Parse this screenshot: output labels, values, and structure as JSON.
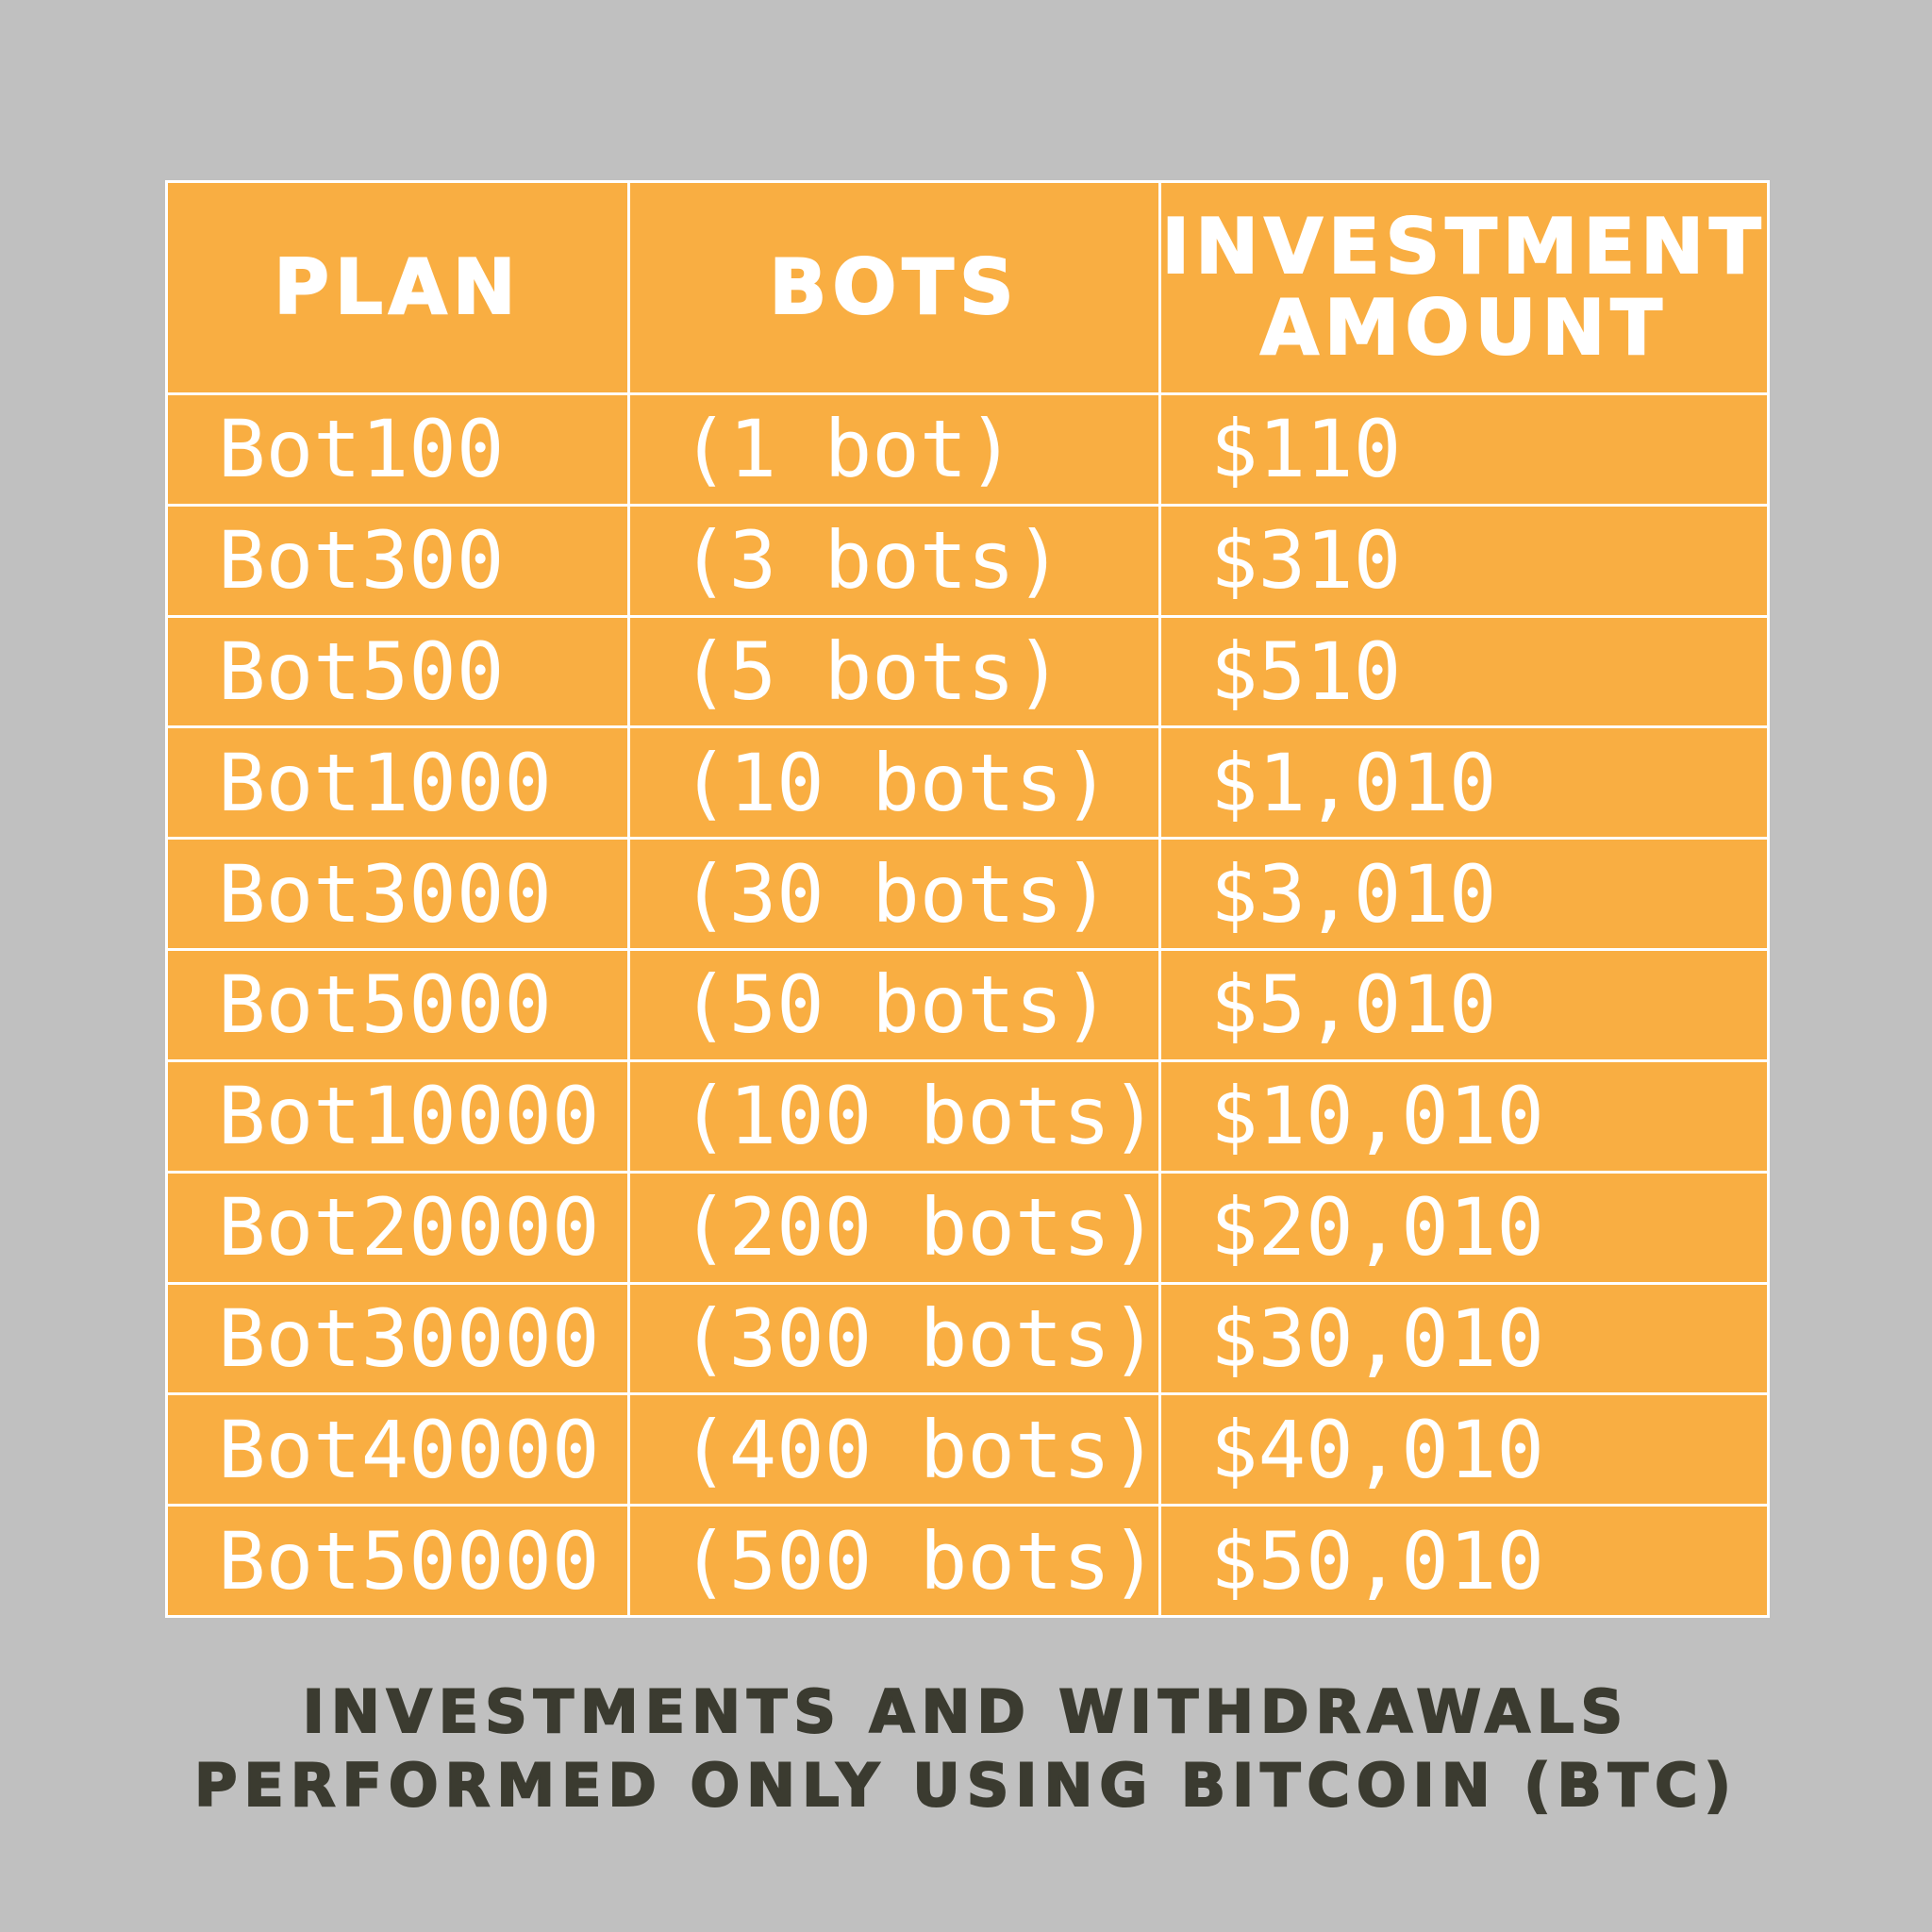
{
  "table": {
    "headers": {
      "plan": "PLAN",
      "bots": "BOTS",
      "amount_line1": "INVESTMENT",
      "amount_line2": "AMOUNT"
    },
    "rows": [
      {
        "plan": "Bot100",
        "bots": "(1 bot)",
        "amount": "$110"
      },
      {
        "plan": "Bot300",
        "bots": "(3 bots)",
        "amount": "$310"
      },
      {
        "plan": "Bot500",
        "bots": "(5 bots)",
        "amount": "$510"
      },
      {
        "plan": "Bot1000",
        "bots": "(10 bots)",
        "amount": "$1,010"
      },
      {
        "plan": "Bot3000",
        "bots": "(30 bots)",
        "amount": "$3,010"
      },
      {
        "plan": "Bot5000",
        "bots": "(50 bots)",
        "amount": "$5,010"
      },
      {
        "plan": "Bot10000",
        "bots": "(100 bots)",
        "amount": "$10,010"
      },
      {
        "plan": "Bot20000",
        "bots": "(200 bots)",
        "amount": "$20,010"
      },
      {
        "plan": "Bot30000",
        "bots": "(300 bots)",
        "amount": "$30,010"
      },
      {
        "plan": "Bot40000",
        "bots": "(400 bots)",
        "amount": "$40,010"
      },
      {
        "plan": "Bot50000",
        "bots": "(500 bots)",
        "amount": "$50,010"
      }
    ]
  },
  "footer": {
    "line1": "INVESTMENTS AND WITHDRAWALS",
    "line2": "PERFORMED ONLY USING BITCOIN (BTC)"
  },
  "colors": {
    "background": "#c0c0c0",
    "table_fill": "#f9ae42",
    "table_text": "#ffffff",
    "footer_text": "#3b3b30"
  }
}
